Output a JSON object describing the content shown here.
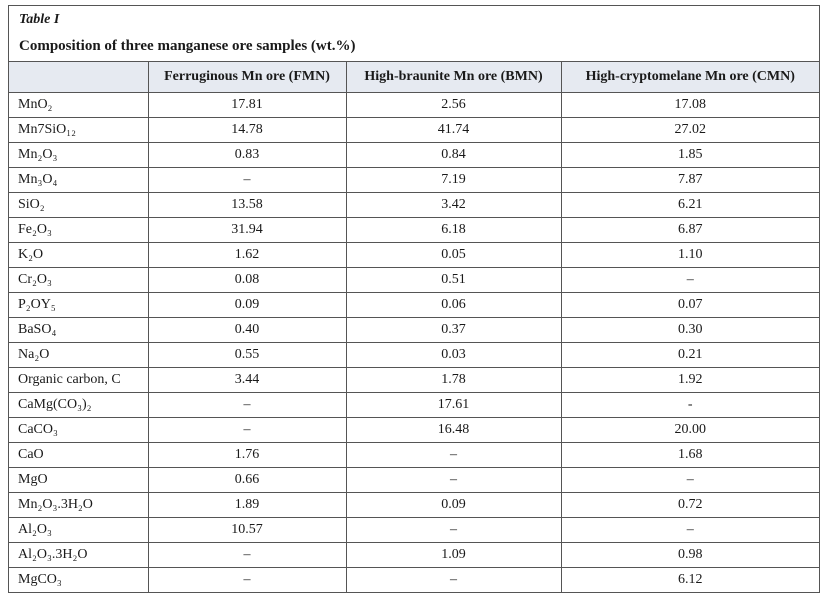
{
  "header": {
    "label": "Table I",
    "title": "Composition of three manganese ore samples (wt.%)"
  },
  "table": {
    "columns": [
      "",
      "Ferruginous Mn ore (FMN)",
      "High-braunite Mn ore (BMN)",
      "High-cryptomelane Mn  ore (CMN)"
    ],
    "rows": [
      [
        "MnO₂",
        "17.81",
        "2.56",
        "17.08"
      ],
      [
        "Mn7SiO₁₂",
        "14.78",
        "41.74",
        "27.02"
      ],
      [
        "Mn₂O₃",
        "0.83",
        "0.84",
        "1.85"
      ],
      [
        "Mn₃O₄",
        "–",
        "7.19",
        "7.87"
      ],
      [
        "SiO₂",
        "13.58",
        "3.42",
        "6.21"
      ],
      [
        "Fe₂O₃",
        "31.94",
        "6.18",
        "6.87"
      ],
      [
        "K₂O",
        "1.62",
        "0.05",
        "1.10"
      ],
      [
        "Cr₂O₃",
        "0.08",
        "0.51",
        "–"
      ],
      [
        "P₂OY₅",
        "0.09",
        "0.06",
        "0.07"
      ],
      [
        "BaSO₄",
        "0.40",
        "0.37",
        "0.30"
      ],
      [
        "Na₂O",
        "0.55",
        "0.03",
        "0.21"
      ],
      [
        "Organic carbon, C",
        "3.44",
        "1.78",
        "1.92"
      ],
      [
        "CaMg(CO₃)₂",
        "–",
        "17.61",
        "-"
      ],
      [
        "CaCO₃",
        "–",
        "16.48",
        "20.00"
      ],
      [
        "CaO",
        "1.76",
        "–",
        "1.68"
      ],
      [
        "MgO",
        "0.66",
        "–",
        "–"
      ],
      [
        "Mn₂O₃.3H₂O",
        "1.89",
        "0.09",
        "0.72"
      ],
      [
        "Al₂O₃",
        "10.57",
        "–",
        "–"
      ],
      [
        "Al₂O₃.3H₂O",
        "–",
        "1.09",
        "0.98"
      ],
      [
        "MgCO₃",
        "–",
        "–",
        "6.12"
      ]
    ]
  }
}
